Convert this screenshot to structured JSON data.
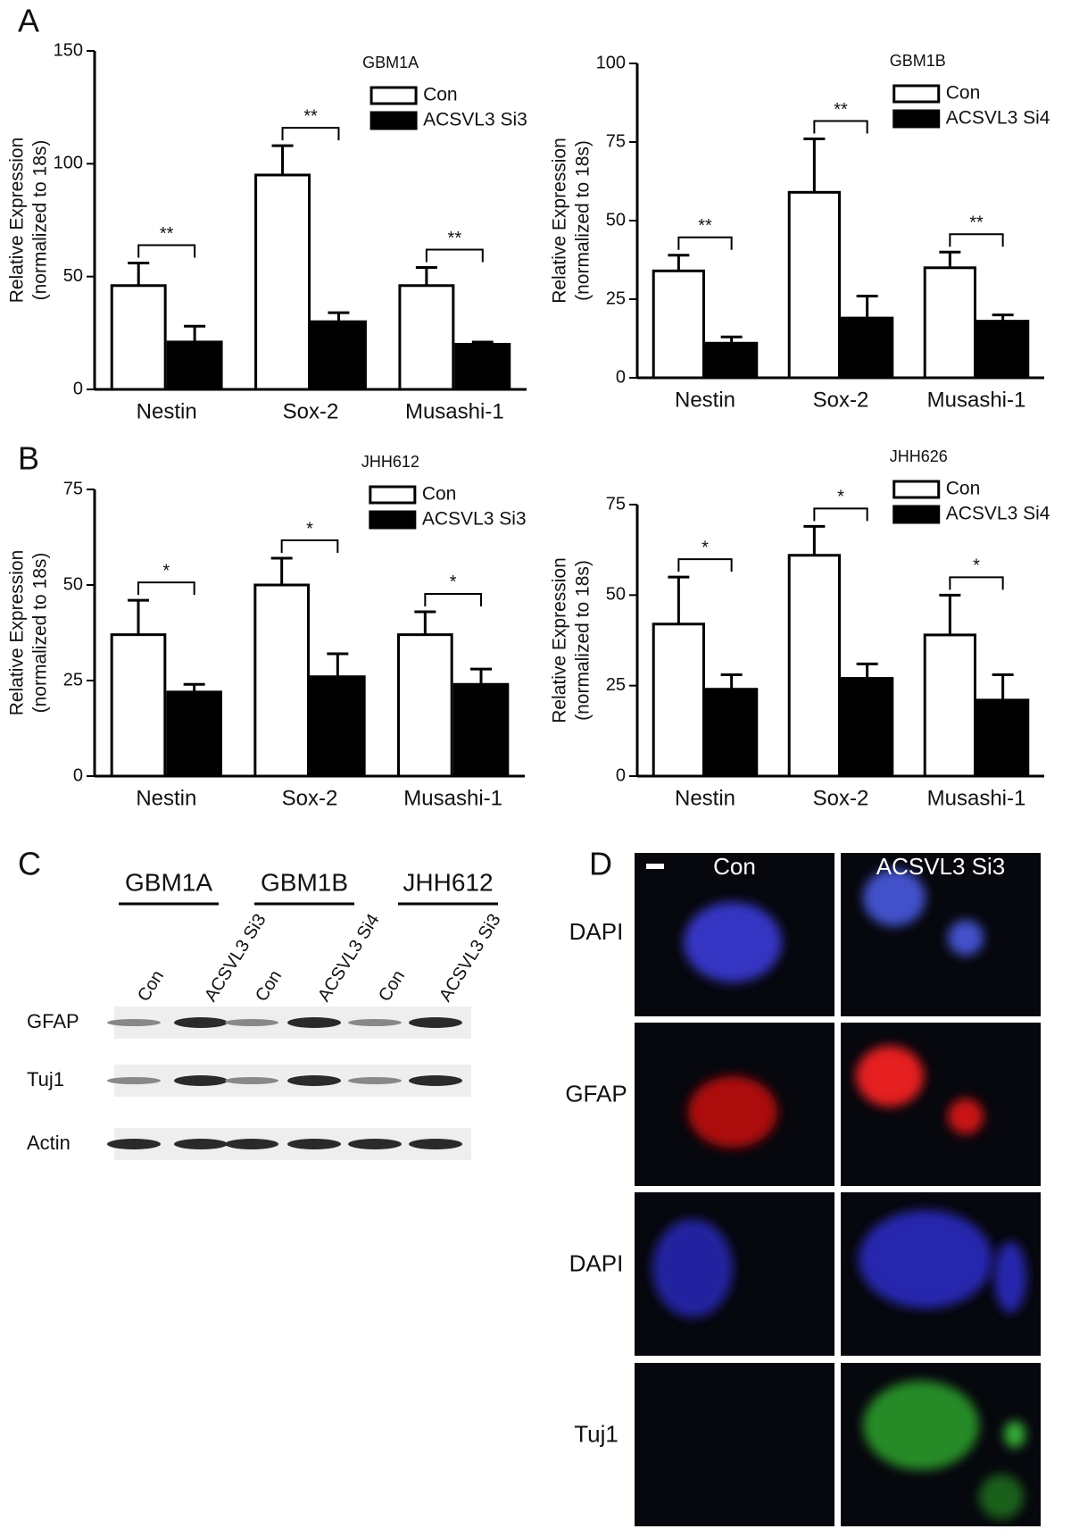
{
  "chart_data": [
    {
      "type": "bar",
      "title": "GBM1A",
      "ylabel": [
        "Relative Expression",
        "(normalized to 18s)"
      ],
      "categories": [
        "Nestin",
        "Sox-2",
        "Musashi-1"
      ],
      "series": [
        {
          "name": "Con",
          "color": "#ffffff",
          "values": [
            46,
            95,
            46
          ],
          "errors": [
            10,
            13,
            8
          ]
        },
        {
          "name": "ACSVL3 Si3",
          "color": "#000000",
          "values": [
            21,
            30,
            20
          ],
          "errors": [
            7,
            4,
            1
          ]
        }
      ],
      "annotations": [
        "**",
        "**",
        "**"
      ],
      "ylim": [
        0,
        150
      ],
      "yticks": [
        0,
        50,
        100,
        150
      ]
    },
    {
      "type": "bar",
      "title": "GBM1B",
      "ylabel": [
        "Relative Expression",
        "(normalized to 18s)"
      ],
      "categories": [
        "Nestin",
        "Sox-2",
        "Musashi-1"
      ],
      "series": [
        {
          "name": "Con",
          "color": "#ffffff",
          "values": [
            34,
            59,
            35
          ],
          "errors": [
            5,
            17,
            5
          ]
        },
        {
          "name": "ACSVL3 Si4",
          "color": "#000000",
          "values": [
            11,
            19,
            18
          ],
          "errors": [
            2,
            7,
            2
          ]
        }
      ],
      "annotations": [
        "**",
        "**",
        "**"
      ],
      "ylim": [
        0,
        100
      ],
      "yticks": [
        0,
        25,
        50,
        75,
        100
      ]
    },
    {
      "type": "bar",
      "title": "JHH612",
      "ylabel": [
        "Relative Expression",
        "(normalized to 18s)"
      ],
      "categories": [
        "Nestin",
        "Sox-2",
        "Musashi-1"
      ],
      "series": [
        {
          "name": "Con",
          "color": "#ffffff",
          "values": [
            37,
            50,
            37
          ],
          "errors": [
            9,
            7,
            6
          ]
        },
        {
          "name": "ACSVL3 Si3",
          "color": "#000000",
          "values": [
            22,
            26,
            24
          ],
          "errors": [
            2,
            6,
            4
          ]
        }
      ],
      "annotations": [
        "*",
        "*",
        "*"
      ],
      "ylim": [
        0,
        75
      ],
      "yticks": [
        0,
        25,
        50,
        75
      ]
    },
    {
      "type": "bar",
      "title": "JHH626",
      "ylabel": [
        "Relative Expression",
        "(normalized to 18s)"
      ],
      "categories": [
        "Nestin",
        "Sox-2",
        "Musashi-1"
      ],
      "series": [
        {
          "name": "Con",
          "color": "#ffffff",
          "values": [
            42,
            61,
            39
          ],
          "errors": [
            13,
            8,
            11
          ]
        },
        {
          "name": "ACSVL3 Si4",
          "color": "#000000",
          "values": [
            24,
            27,
            21
          ],
          "errors": [
            4,
            4,
            7
          ]
        }
      ],
      "annotations": [
        "*",
        "*",
        "*"
      ],
      "ylim": [
        0,
        75
      ],
      "yticks": [
        0,
        25,
        50,
        75
      ]
    }
  ],
  "panel_labels": [
    "A",
    "B",
    "C",
    "D"
  ],
  "blot": {
    "groups": [
      "GBM1A",
      "GBM1B",
      "JHH612"
    ],
    "lanes": [
      "Con",
      "ACSVL3 Si3",
      "Con",
      "ACSVL3 Si4",
      "Con",
      "ACSVL3 Si3"
    ],
    "rows": [
      "GFAP",
      "Tuj1",
      "Actin"
    ]
  },
  "microscopy": {
    "columns": [
      "Con",
      "ACSVL3 Si3"
    ],
    "rows": [
      "DAPI",
      "GFAP",
      "DAPI",
      "Tuj1"
    ]
  }
}
